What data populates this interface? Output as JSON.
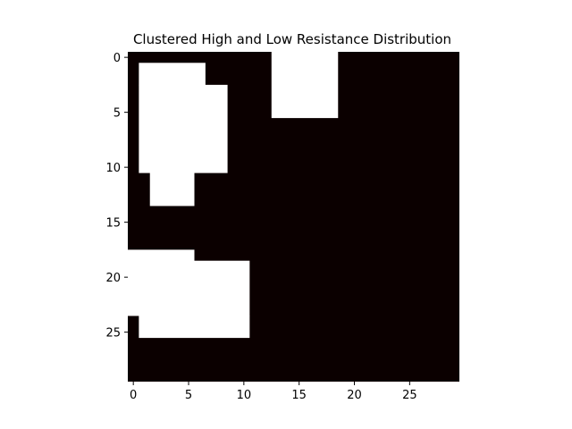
{
  "chart_data": {
    "type": "heatmap",
    "title": "Clustered High and Low Resistance Distribution",
    "xlabel": "",
    "ylabel": "",
    "grid": false,
    "rows": 30,
    "cols": 30,
    "xlim": [
      -0.5,
      29.5
    ],
    "ylim": [
      29.5,
      -0.5
    ],
    "x_ticks": [
      0,
      5,
      10,
      15,
      20,
      25
    ],
    "y_ticks": [
      0,
      5,
      10,
      15,
      20,
      25
    ],
    "colormap": {
      "low": "#0b0000",
      "high": "#ffffff"
    },
    "values_encoding": "1 = high (white), 0 = low (black)",
    "high_cells": [
      {
        "rows": [
          1,
          2
        ],
        "cols": [
          1,
          6
        ]
      },
      {
        "rows": [
          3,
          10
        ],
        "cols": [
          1,
          8
        ]
      },
      {
        "rows": [
          11,
          13
        ],
        "cols": [
          2,
          5
        ]
      },
      {
        "rows": [
          0,
          5
        ],
        "cols": [
          13,
          18
        ]
      },
      {
        "rows": [
          18,
          18
        ],
        "cols": [
          0,
          5
        ]
      },
      {
        "rows": [
          19,
          23
        ],
        "cols": [
          0,
          10
        ]
      },
      {
        "rows": [
          24,
          25
        ],
        "cols": [
          1,
          10
        ]
      }
    ]
  }
}
